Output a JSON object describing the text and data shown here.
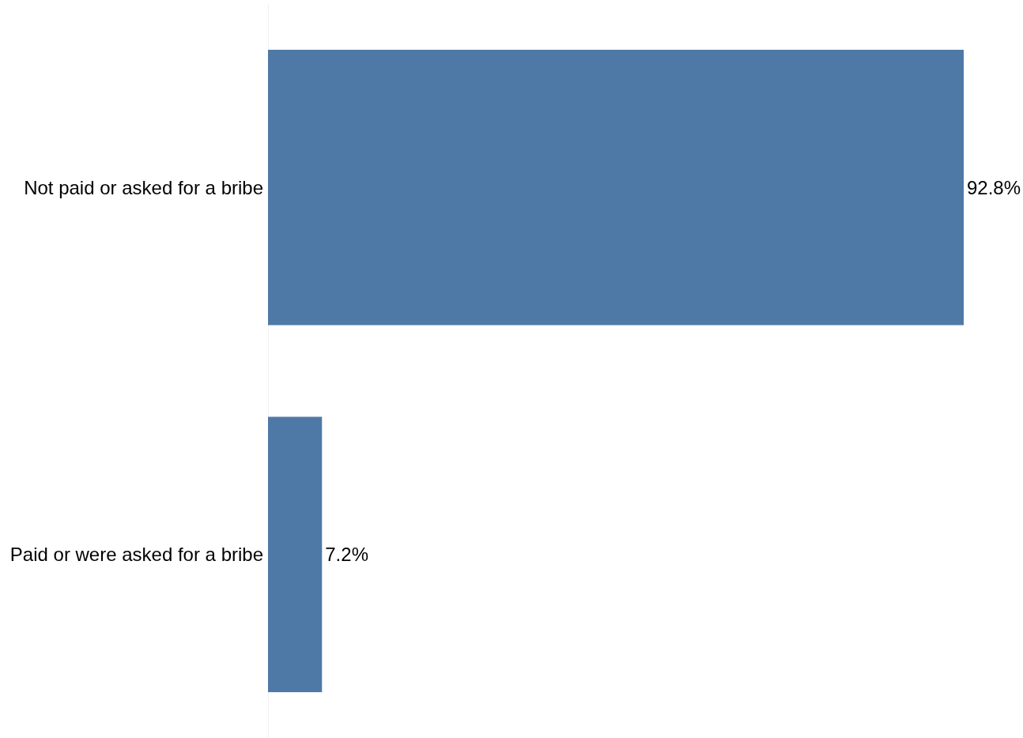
{
  "chart_data": {
    "type": "bar",
    "orientation": "horizontal",
    "categories": [
      "Not paid or asked for a bribe",
      "Paid or were asked for a bribe"
    ],
    "values": [
      92.8,
      7.2
    ],
    "value_labels": [
      "92.8%",
      "7.2%"
    ],
    "color": "#4e79a7",
    "tick_labels": "y"
  }
}
